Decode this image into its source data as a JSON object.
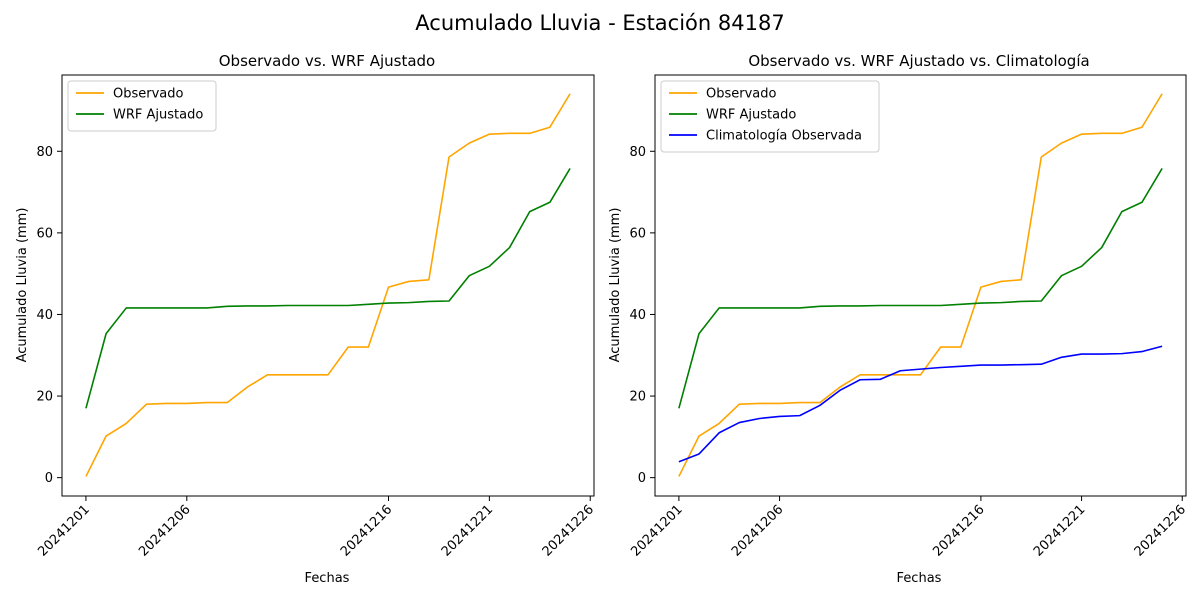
{
  "figure": {
    "suptitle": "Acumulado Lluvia - Estación 84187"
  },
  "colors": {
    "observado": "#ffa500",
    "wrf": "#008000",
    "clim": "#0000ff"
  },
  "chart_data": [
    {
      "type": "line",
      "title": "Observado vs. WRF Ajustado",
      "xlabel": "Fechas",
      "ylabel": "Acumulado Lluvia (mm)",
      "x": [
        "20241201",
        "20241202",
        "20241203",
        "20241204",
        "20241205",
        "20241206",
        "20241207",
        "20241208",
        "20241209",
        "20241210",
        "20241211",
        "20241212",
        "20241213",
        "20241214",
        "20241215",
        "20241216",
        "20241217",
        "20241218",
        "20241219",
        "20241220",
        "20241221",
        "20241222",
        "20241223",
        "20241224",
        "20241225"
      ],
      "x_tick_labels": [
        "20241201",
        "20241206",
        "20241216",
        "20241221",
        "20241226"
      ],
      "y_ticks": [
        0,
        20,
        40,
        60,
        80
      ],
      "ylim": [
        -4.5,
        98.7
      ],
      "legend": "upper left",
      "grid": false,
      "series": [
        {
          "name": "Observado",
          "color": "#ffa500",
          "values": [
            0.3,
            10.2,
            13.3,
            18.0,
            18.2,
            18.2,
            18.4,
            18.4,
            22.2,
            25.2,
            25.2,
            25.2,
            25.2,
            32.0,
            32.0,
            46.7,
            48.1,
            48.5,
            78.6,
            82.0,
            84.2,
            84.4,
            84.4,
            85.9,
            94.1
          ]
        },
        {
          "name": "WRF Ajustado",
          "color": "#008000",
          "values": [
            17.0,
            35.3,
            41.6,
            41.6,
            41.6,
            41.6,
            41.6,
            42.0,
            42.1,
            42.1,
            42.2,
            42.2,
            42.2,
            42.2,
            42.5,
            42.8,
            42.9,
            43.2,
            43.3,
            49.5,
            51.8,
            56.4,
            65.2,
            67.5,
            75.8
          ]
        }
      ]
    },
    {
      "type": "line",
      "title": "Observado vs. WRF Ajustado vs. Climatología",
      "xlabel": "Fechas",
      "ylabel": "Acumulado Lluvia (mm)",
      "x": [
        "20241201",
        "20241202",
        "20241203",
        "20241204",
        "20241205",
        "20241206",
        "20241207",
        "20241208",
        "20241209",
        "20241210",
        "20241211",
        "20241212",
        "20241213",
        "20241214",
        "20241215",
        "20241216",
        "20241217",
        "20241218",
        "20241219",
        "20241220",
        "20241221",
        "20241222",
        "20241223",
        "20241224",
        "20241225"
      ],
      "x_tick_labels": [
        "20241201",
        "20241206",
        "20241216",
        "20241221",
        "20241226"
      ],
      "y_ticks": [
        0,
        20,
        40,
        60,
        80
      ],
      "ylim": [
        -4.5,
        98.7
      ],
      "legend": "upper left",
      "grid": false,
      "series": [
        {
          "name": "Observado",
          "color": "#ffa500",
          "values": [
            0.3,
            10.2,
            13.3,
            18.0,
            18.2,
            18.2,
            18.4,
            18.4,
            22.2,
            25.2,
            25.2,
            25.2,
            25.2,
            32.0,
            32.0,
            46.7,
            48.1,
            48.5,
            78.6,
            82.0,
            84.2,
            84.4,
            84.4,
            85.9,
            94.1
          ]
        },
        {
          "name": "WRF Ajustado",
          "color": "#008000",
          "values": [
            17.0,
            35.3,
            41.6,
            41.6,
            41.6,
            41.6,
            41.6,
            42.0,
            42.1,
            42.1,
            42.2,
            42.2,
            42.2,
            42.2,
            42.5,
            42.8,
            42.9,
            43.2,
            43.3,
            49.5,
            51.8,
            56.4,
            65.2,
            67.5,
            75.8
          ]
        },
        {
          "name": "Climatología Observada",
          "color": "#0000ff",
          "values": [
            3.9,
            5.8,
            11.0,
            13.5,
            14.5,
            15.0,
            15.2,
            17.7,
            21.4,
            24.0,
            24.1,
            26.2,
            26.6,
            27.0,
            27.3,
            27.6,
            27.6,
            27.7,
            27.8,
            29.5,
            30.3,
            30.3,
            30.4,
            30.9,
            32.2
          ]
        }
      ]
    }
  ]
}
